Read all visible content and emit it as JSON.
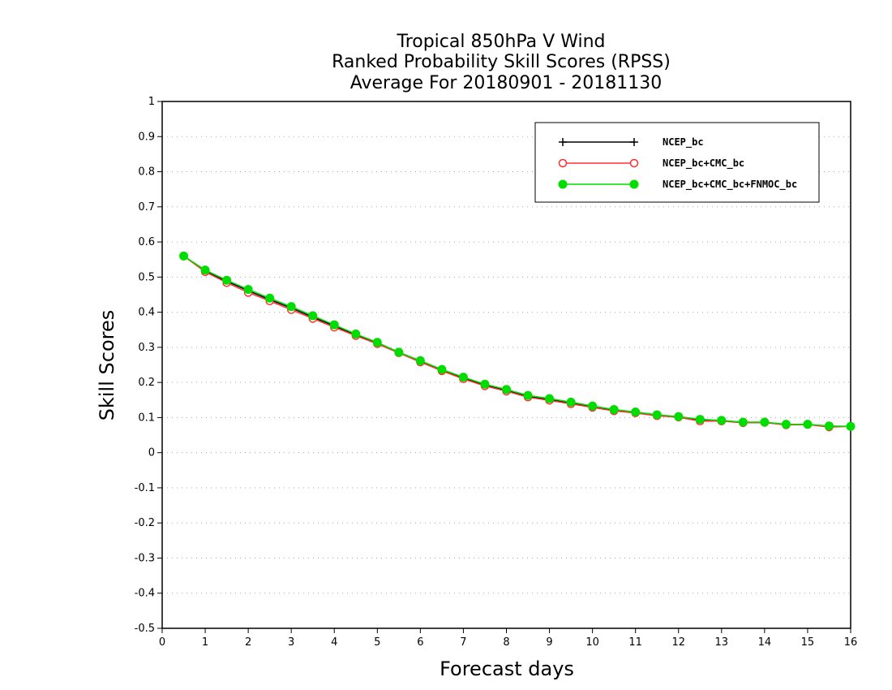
{
  "chart_data": {
    "type": "line",
    "title_lines": [
      "Tropical 850hPa V Wind",
      "Ranked Probability Skill Scores (RPSS)",
      "Average For 20180901 - 20181130"
    ],
    "xlabel": "Forecast days",
    "ylabel": "Skill Scores",
    "xlim": [
      0,
      16
    ],
    "ylim": [
      -0.5,
      1
    ],
    "xticks": [
      "0",
      "1",
      "2",
      "3",
      "4",
      "5",
      "6",
      "7",
      "8",
      "9",
      "10",
      "11",
      "12",
      "13",
      "14",
      "15",
      "16"
    ],
    "yticks": [
      "1",
      "0.9",
      "0.8",
      "0.7",
      "0.6",
      "0.5",
      "0.4",
      "0.3",
      "0.2",
      "0.1",
      "0",
      "-0.1",
      "-0.2",
      "-0.3",
      "-0.4",
      "-0.5"
    ],
    "grid": "horizontal dotted",
    "legend_position": "top-right",
    "x": [
      0.5,
      1,
      1.5,
      2,
      2.5,
      3,
      3.5,
      4,
      4.5,
      5,
      5.5,
      6,
      6.5,
      7,
      7.5,
      8,
      8.5,
      9,
      9.5,
      10,
      10.5,
      11,
      11.5,
      12,
      12.5,
      13,
      13.5,
      14,
      14.5,
      15,
      15.5,
      16
    ],
    "series": [
      {
        "name": "NCEP_bc",
        "color": "#000000",
        "marker": "plus",
        "values": [
          0.56,
          0.518,
          0.488,
          0.461,
          0.436,
          0.412,
          0.386,
          0.361,
          0.336,
          0.313,
          0.286,
          0.261,
          0.236,
          0.213,
          0.193,
          0.178,
          0.161,
          0.151,
          0.141,
          0.131,
          0.121,
          0.114,
          0.106,
          0.102,
          0.093,
          0.091,
          0.086,
          0.086,
          0.08,
          0.08,
          0.075,
          0.075
        ]
      },
      {
        "name": "NCEP_bc+CMC_bc",
        "color": "#ff3030",
        "marker": "open-circle",
        "values": [
          0.56,
          0.515,
          0.484,
          0.456,
          0.432,
          0.407,
          0.382,
          0.357,
          0.333,
          0.31,
          0.284,
          0.258,
          0.233,
          0.21,
          0.19,
          0.175,
          0.158,
          0.149,
          0.139,
          0.129,
          0.119,
          0.113,
          0.105,
          0.101,
          0.09,
          0.09,
          0.085,
          0.086,
          0.079,
          0.08,
          0.073,
          0.075
        ]
      },
      {
        "name": "NCEP_bc+CMC_bc+FNMOC_bc",
        "color": "#00dd00",
        "marker": "filled-circle",
        "values": [
          0.56,
          0.52,
          0.491,
          0.465,
          0.44,
          0.416,
          0.39,
          0.364,
          0.338,
          0.314,
          0.286,
          0.262,
          0.237,
          0.215,
          0.195,
          0.18,
          0.163,
          0.154,
          0.144,
          0.133,
          0.123,
          0.116,
          0.108,
          0.103,
          0.095,
          0.092,
          0.087,
          0.087,
          0.081,
          0.081,
          0.076,
          0.075
        ]
      }
    ]
  }
}
